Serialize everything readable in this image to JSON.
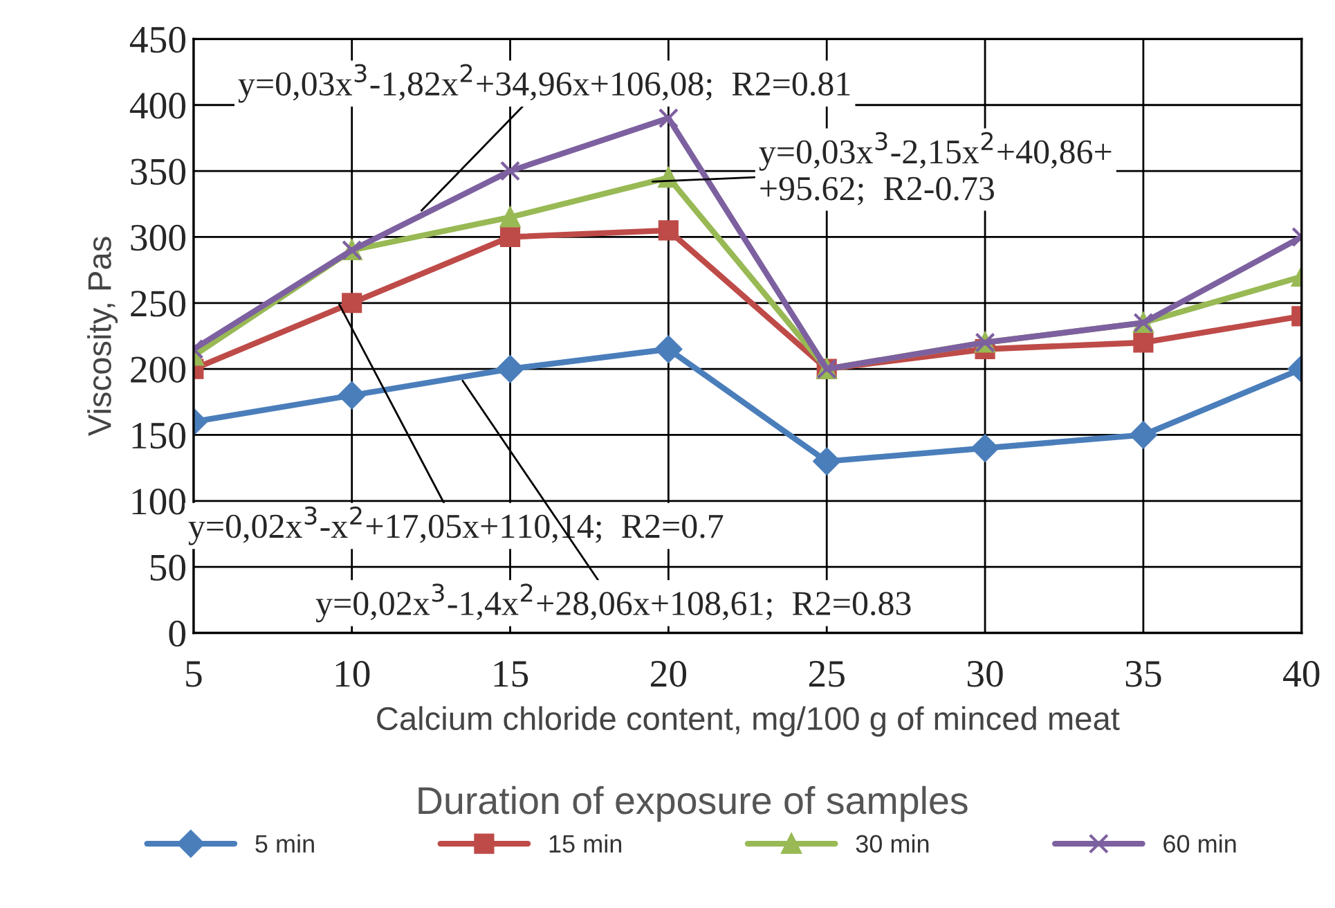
{
  "chart_data": {
    "type": "line",
    "x": [
      5,
      10,
      15,
      20,
      25,
      30,
      35,
      40
    ],
    "xlim": [
      5,
      40
    ],
    "xticks": [
      5,
      10,
      15,
      20,
      25,
      30,
      35,
      40
    ],
    "ylim": [
      0,
      450
    ],
    "yticks": [
      0,
      50,
      100,
      150,
      200,
      250,
      300,
      350,
      400,
      450
    ],
    "xlabel": "Calcium chloride content, mg/100 g of minced meat",
    "ylabel": "Viscosity, Pas",
    "legend_title": "Duration of exposure of samples",
    "legend": "bottom",
    "grid": true,
    "series": [
      {
        "name": "5 min",
        "color": "#4a7ebb",
        "marker": "diamond",
        "values": [
          160,
          180,
          200,
          215,
          130,
          140,
          150,
          200
        ]
      },
      {
        "name": "15 min",
        "color": "#be4b48",
        "marker": "square",
        "values": [
          200,
          250,
          300,
          305,
          200,
          215,
          220,
          240
        ]
      },
      {
        "name": "30 min",
        "color": "#98b954",
        "marker": "triangle",
        "values": [
          210,
          290,
          315,
          345,
          200,
          220,
          235,
          270
        ]
      },
      {
        "name": "60 min",
        "color": "#7d60a0",
        "marker": "cross",
        "values": [
          215,
          290,
          350,
          390,
          200,
          220,
          235,
          300
        ]
      }
    ],
    "annotations": [
      {
        "text": "y=0,03x$^{3}$-1,82x$^{2}$+34,96x+106,08;  R2=0.81",
        "x": 12.2,
        "y": 320
      },
      {
        "text": "y=0,03x$^{3}$-2,15x$^{2}$+40,86+\n+95.62;  R2-0.73",
        "x": 19.5,
        "y": 342
      },
      {
        "text": "y=0,02x$^{3}$-x$^{2}$+17,05x+110,14;  R2=0.7",
        "x": 9.6,
        "y": 249
      },
      {
        "text": "y=0,02x$^{3}$-1,4x$^{2}$+28,06x+108,61;  R2=0.83",
        "x": 13.5,
        "y": 191
      }
    ]
  }
}
